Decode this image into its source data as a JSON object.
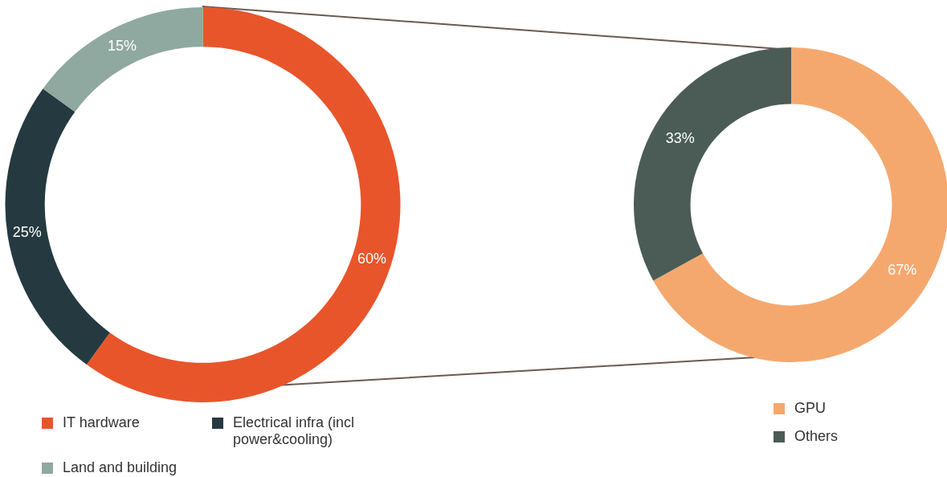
{
  "chart_data": [
    {
      "type": "donut",
      "categories": [
        "IT hardware",
        "Electrical infra (incl power&cooling)",
        "Land and building"
      ],
      "values": [
        60,
        25,
        15
      ],
      "colors": [
        "#e8552b",
        "#243a40",
        "#8fa8a0"
      ],
      "value_labels": [
        "60%",
        "25%",
        "15%"
      ],
      "legend": "bottom"
    },
    {
      "type": "donut",
      "categories": [
        "GPU",
        "Others"
      ],
      "values": [
        67,
        33
      ],
      "colors": [
        "#f5a86e",
        "#4a5c55"
      ],
      "value_labels": [
        "67%",
        "33%"
      ],
      "legend": "bottom"
    }
  ]
}
